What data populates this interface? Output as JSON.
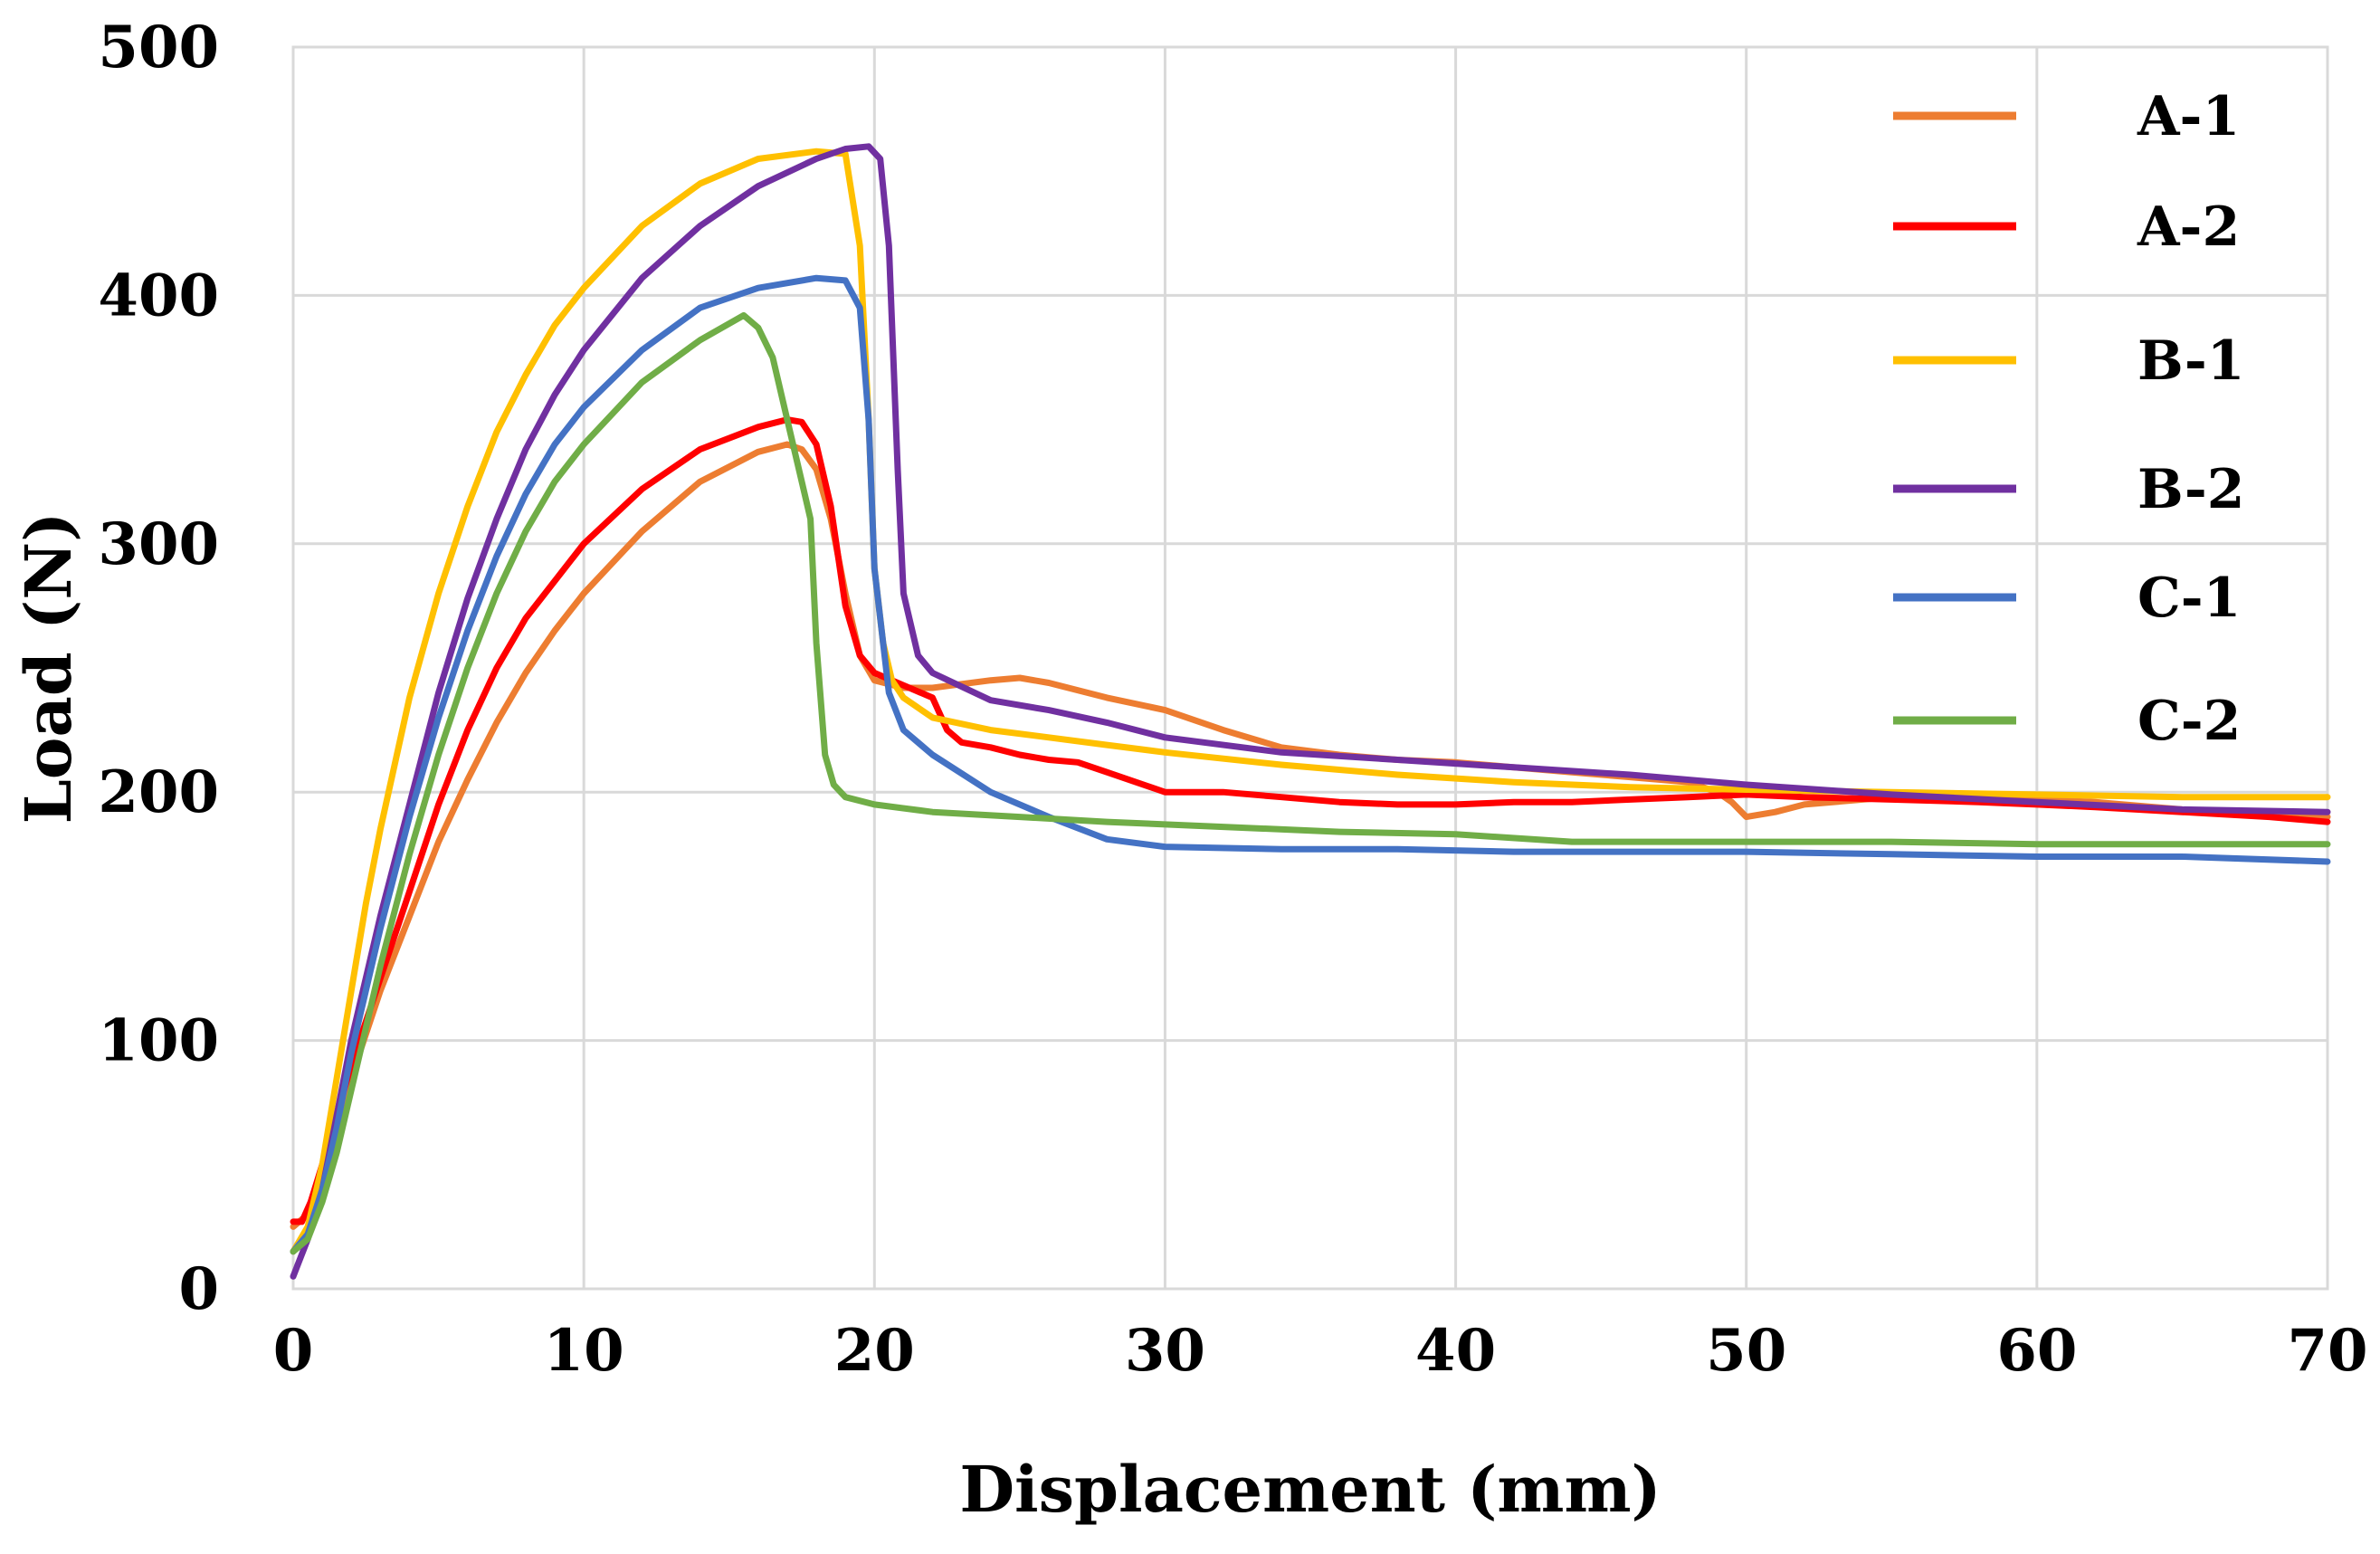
{
  "chart_data": {
    "type": "line",
    "title": "",
    "xlabel": "Displacement (mm)",
    "ylabel": "Load (N)",
    "xlim": [
      0,
      70
    ],
    "ylim": [
      0,
      500
    ],
    "xticks": [
      0,
      10,
      20,
      30,
      40,
      50,
      60,
      70
    ],
    "yticks": [
      0,
      100,
      200,
      300,
      400,
      500
    ],
    "grid": true,
    "legend_position": "top-right",
    "series": [
      {
        "name": "A-1",
        "color": "#ED7D31",
        "x": [
          0,
          0.5,
          1,
          1.5,
          2,
          3,
          4,
          5,
          6,
          7,
          8,
          9,
          10,
          12,
          14,
          16,
          17,
          17.5,
          18,
          18.5,
          19,
          19.5,
          20,
          21,
          22,
          24,
          25,
          26,
          28,
          30,
          32,
          34,
          36,
          38,
          40,
          42,
          44,
          46,
          48,
          49,
          49.5,
          50,
          51,
          52,
          55,
          58,
          60,
          62,
          65,
          68,
          70
        ],
        "y": [
          25,
          30,
          45,
          65,
          85,
          120,
          150,
          180,
          205,
          228,
          248,
          265,
          280,
          305,
          325,
          337,
          340,
          338,
          330,
          310,
          280,
          255,
          245,
          242,
          242,
          245,
          246,
          244,
          238,
          233,
          225,
          218,
          215,
          213,
          212,
          210,
          208,
          206,
          204,
          200,
          196,
          190,
          192,
          195,
          198,
          198,
          197,
          196,
          193,
          191,
          190
        ]
      },
      {
        "name": "A-2",
        "color": "#FF0000",
        "x": [
          0,
          0.3,
          0.6,
          1,
          1.5,
          2,
          3,
          4,
          5,
          6,
          7,
          8,
          10,
          12,
          14,
          16,
          17,
          17.5,
          18,
          18.5,
          19,
          19.5,
          20,
          21,
          22,
          22.5,
          23,
          24,
          25,
          26,
          27,
          28,
          29,
          30,
          32,
          34,
          36,
          38,
          40,
          42,
          44,
          46,
          48,
          50,
          52,
          55,
          58,
          60,
          62,
          65,
          68,
          70
        ],
        "y": [
          27,
          27,
          35,
          50,
          70,
          90,
          125,
          160,
          195,
          225,
          250,
          270,
          300,
          322,
          338,
          347,
          350,
          349,
          340,
          315,
          275,
          255,
          248,
          243,
          238,
          225,
          220,
          218,
          215,
          213,
          212,
          208,
          204,
          200,
          200,
          198,
          196,
          195,
          195,
          196,
          196,
          197,
          198,
          199,
          198,
          197,
          196,
          195,
          194,
          192,
          190,
          188
        ]
      },
      {
        "name": "B-1",
        "color": "#FFC000",
        "x": [
          0,
          0.5,
          1,
          1.5,
          2,
          2.5,
          3,
          4,
          5,
          6,
          7,
          8,
          9,
          10,
          12,
          14,
          16,
          18,
          19,
          19.5,
          19.8,
          20,
          20.3,
          20.6,
          21,
          22,
          24,
          26,
          28,
          30,
          34,
          38,
          42,
          46,
          50,
          55,
          60,
          65,
          70
        ],
        "y": [
          15,
          25,
          50,
          85,
          120,
          155,
          185,
          238,
          280,
          315,
          345,
          368,
          388,
          403,
          428,
          445,
          455,
          458,
          457,
          420,
          350,
          290,
          260,
          245,
          238,
          230,
          225,
          222,
          219,
          216,
          211,
          207,
          204,
          202,
          201,
          200,
          199,
          198,
          198
        ]
      },
      {
        "name": "B-2",
        "color": "#7030A0",
        "x": [
          0,
          0.5,
          1,
          1.5,
          2,
          3,
          4,
          5,
          6,
          7,
          8,
          9,
          10,
          12,
          14,
          16,
          18,
          19,
          19.8,
          20.2,
          20.5,
          20.8,
          21,
          21.5,
          22,
          24,
          26,
          28,
          30,
          34,
          38,
          42,
          46,
          50,
          55,
          60,
          65,
          70
        ],
        "y": [
          5,
          20,
          40,
          70,
          100,
          150,
          195,
          240,
          278,
          310,
          338,
          360,
          378,
          407,
          428,
          444,
          455,
          459,
          460,
          455,
          420,
          330,
          280,
          255,
          248,
          237,
          233,
          228,
          222,
          216,
          213,
          210,
          207,
          203,
          199,
          196,
          193,
          192
        ]
      },
      {
        "name": "C-1",
        "color": "#4472C4",
        "x": [
          0,
          0.5,
          1,
          1.5,
          2,
          3,
          4,
          5,
          6,
          7,
          8,
          9,
          10,
          12,
          14,
          16,
          18,
          19,
          19.5,
          19.8,
          20,
          20.5,
          21,
          22,
          24,
          26,
          28,
          30,
          34,
          38,
          42,
          46,
          50,
          55,
          60,
          65,
          70
        ],
        "y": [
          15,
          22,
          40,
          65,
          95,
          145,
          190,
          230,
          265,
          295,
          320,
          340,
          355,
          378,
          395,
          403,
          407,
          406,
          395,
          350,
          290,
          240,
          225,
          215,
          200,
          190,
          181,
          178,
          177,
          177,
          176,
          176,
          176,
          175,
          174,
          174,
          172
        ]
      },
      {
        "name": "C-2",
        "color": "#70AD47",
        "x": [
          0,
          0.5,
          1,
          1.5,
          2,
          3,
          4,
          5,
          6,
          7,
          8,
          9,
          10,
          12,
          14,
          15.5,
          16,
          16.5,
          17,
          17.5,
          17.8,
          18,
          18.3,
          18.6,
          19,
          20,
          22,
          25,
          28,
          32,
          36,
          40,
          44,
          46,
          50,
          55,
          60,
          65,
          70
        ],
        "y": [
          15,
          20,
          35,
          55,
          80,
          130,
          175,
          215,
          250,
          280,
          305,
          325,
          340,
          365,
          382,
          392,
          387,
          375,
          350,
          325,
          310,
          260,
          215,
          203,
          198,
          195,
          192,
          190,
          188,
          186,
          184,
          183,
          180,
          180,
          180,
          180,
          179,
          179,
          179
        ]
      }
    ]
  }
}
